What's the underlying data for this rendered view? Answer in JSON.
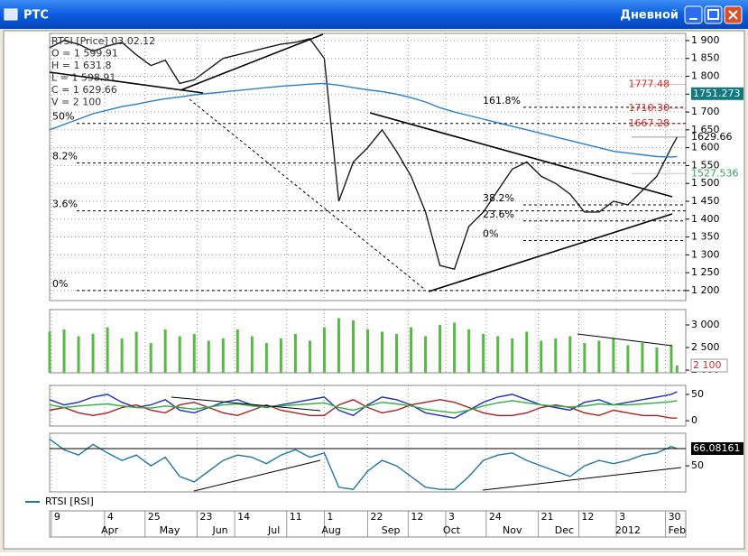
{
  "window": {
    "title": "РТС",
    "timeframe": "Дневной"
  },
  "chart_data": [
    {
      "type": "line",
      "info": [
        "RTSI [Price] 03.02.12",
        "O = 1 599.91",
        "H = 1 631.8",
        "L = 1 598.91",
        "C = 1 629.66",
        "V = 2 100"
      ],
      "x": [
        0,
        5,
        10,
        15,
        20,
        25,
        30,
        35,
        40,
        45,
        50,
        55,
        60,
        65,
        70,
        75,
        80,
        85,
        90,
        95,
        100,
        105,
        110,
        115,
        120,
        125,
        130,
        135,
        140,
        145,
        150,
        155,
        160,
        165,
        170,
        175,
        180,
        185,
        190,
        195,
        200,
        205,
        210,
        215,
        217
      ],
      "xlim": [
        0,
        220
      ],
      "xticks": [
        {
          "value": 0.6,
          "label": "9"
        },
        {
          "value": 19,
          "label": "4"
        },
        {
          "value": 33,
          "label": "25"
        },
        {
          "value": 51,
          "label": "23"
        },
        {
          "value": 64,
          "label": "14"
        },
        {
          "value": 82,
          "label": "11"
        },
        {
          "value": 95,
          "label": "1"
        },
        {
          "value": 110,
          "label": "22"
        },
        {
          "value": 124,
          "label": "12"
        },
        {
          "value": 137,
          "label": "3"
        },
        {
          "value": 151,
          "label": "24"
        },
        {
          "value": 169,
          "label": "21"
        },
        {
          "value": 183,
          "label": "12"
        },
        {
          "value": 196,
          "label": "3"
        },
        {
          "value": 213,
          "label": "30"
        }
      ],
      "xmonths": [
        {
          "value": 20.8,
          "label": "Apr"
        },
        {
          "value": 41.5,
          "label": "May"
        },
        {
          "value": 59,
          "label": "Jun"
        },
        {
          "value": 77.6,
          "label": "Jul"
        },
        {
          "value": 97.4,
          "label": "Aug"
        },
        {
          "value": 118,
          "label": "Sep"
        },
        {
          "value": 139,
          "label": "Oct"
        },
        {
          "value": 160,
          "label": "Nov"
        },
        {
          "value": 178,
          "label": "Dec"
        },
        {
          "value": 200,
          "label": "2012"
        },
        {
          "value": 217,
          "label": "Feb"
        }
      ],
      "ylim": [
        1172,
        1920
      ],
      "yticks": [
        {
          "value": 1200,
          "label": "1 200"
        },
        {
          "value": 1250,
          "label": "1 250"
        },
        {
          "value": 1300,
          "label": "1 300"
        },
        {
          "value": 1350,
          "label": "1 350"
        },
        {
          "value": 1400,
          "label": "1 400"
        },
        {
          "value": 1450,
          "label": "1 450"
        },
        {
          "value": 1500,
          "label": "1 500"
        },
        {
          "value": 1550,
          "label": "1 550"
        },
        {
          "value": 1600,
          "label": "1 600"
        },
        {
          "value": 1650,
          "label": "1 650"
        },
        {
          "value": 1700,
          "label": "1 700"
        },
        {
          "value": 1750,
          "label": "1 750"
        },
        {
          "value": 1800,
          "label": "1 800"
        },
        {
          "value": 1850,
          "label": "1 850"
        },
        {
          "value": 1900,
          "label": "1 900"
        }
      ],
      "grid": true,
      "series": [
        {
          "color": "#1a1a1a",
          "values": [
            1880,
            1900,
            1890,
            1870,
            1885,
            1895,
            1860,
            1830,
            1845,
            1780,
            1790,
            1820,
            1850,
            1860,
            1870,
            1880,
            1890,
            1895,
            1905,
            1850,
            1450,
            1560,
            1600,
            1650,
            1590,
            1520,
            1420,
            1270,
            1260,
            1380,
            1420,
            1480,
            1540,
            1560,
            1520,
            1500,
            1470,
            1420,
            1420,
            1450,
            1440,
            1480,
            1520,
            1600,
            1629.66
          ]
        },
        {
          "color": "#2a7fd0",
          "values": [
            1650,
            1665,
            1680,
            1695,
            1705,
            1715,
            1722,
            1730,
            1737,
            1742,
            1748,
            1752,
            1756,
            1760,
            1764,
            1768,
            1772,
            1775,
            1778,
            1780,
            1775,
            1768,
            1762,
            1757,
            1750,
            1740,
            1728,
            1712,
            1700,
            1690,
            1680,
            1670,
            1660,
            1650,
            1640,
            1630,
            1620,
            1610,
            1600,
            1590,
            1585,
            1580,
            1575,
            1574,
            1575
          ]
        }
      ],
      "fib": [
        {
          "value": 1713,
          "label": "161.8%",
          "anchor": "right"
        },
        {
          "value": 1668,
          "label": "50%",
          "anchor": "left"
        },
        {
          "value": 1557,
          "label": "8.2%",
          "anchor": "left"
        },
        {
          "value": 1423,
          "label": "3.6%",
          "anchor": "left"
        },
        {
          "value": 1200,
          "label": "0%",
          "anchor": "left"
        },
        {
          "value": 1440,
          "label": "38.2%",
          "anchor": "right"
        },
        {
          "value": 1395,
          "label": "23.6%",
          "anchor": "right"
        },
        {
          "value": 1340,
          "label": "0%",
          "anchor": "right"
        }
      ],
      "price_labels": [
        {
          "value": 1777.48,
          "color": "#d03030"
        },
        {
          "value": 1710.3,
          "label": "1710.30",
          "color": "#d03030"
        },
        {
          "value": 1667.28,
          "color": "#d03030"
        },
        {
          "value": 1751.273,
          "color": "#ffffff",
          "background": "#107a80"
        },
        {
          "value": 1629.66,
          "color": "#000000"
        },
        {
          "value": 1527.536,
          "color": "#3aa060"
        }
      ]
    },
    {
      "type": "bar",
      "ylim": [
        1940,
        3340
      ],
      "yticks": [
        {
          "value": 2000,
          "label": "2 000"
        },
        {
          "value": 2500,
          "label": "2 500"
        },
        {
          "value": 3000,
          "label": "3 000"
        }
      ],
      "color": "#58b848",
      "values": [
        2850,
        2900,
        2750,
        2800,
        2950,
        2700,
        2850,
        2600,
        2900,
        2750,
        2800,
        2650,
        2700,
        2900,
        2750,
        2600,
        2700,
        2800,
        2650,
        2950,
        3150,
        3100,
        2900,
        2850,
        2800,
        2950,
        2750,
        3000,
        3050,
        2900,
        2800,
        2750,
        2700,
        2850,
        2650,
        2700,
        2750,
        2600,
        2650,
        2700,
        2550,
        2600,
        2500,
        2550,
        2100
      ],
      "current": {
        "value": 2100,
        "label": "2 100",
        "color": "#d03030"
      }
    },
    {
      "type": "line",
      "ylim": [
        -10,
        67
      ],
      "yticks": [
        0,
        50
      ],
      "series": [
        {
          "color": "#2030c0",
          "values": [
            40,
            30,
            35,
            45,
            50,
            35,
            25,
            30,
            40,
            20,
            15,
            25,
            35,
            40,
            30,
            25,
            30,
            35,
            40,
            45,
            20,
            10,
            30,
            45,
            40,
            30,
            15,
            10,
            5,
            20,
            35,
            45,
            50,
            40,
            30,
            25,
            20,
            35,
            40,
            30,
            35,
            40,
            45,
            50,
            55
          ]
        },
        {
          "color": "#b02020",
          "values": [
            20,
            25,
            15,
            10,
            15,
            25,
            30,
            20,
            15,
            30,
            35,
            25,
            15,
            10,
            20,
            30,
            20,
            15,
            10,
            10,
            30,
            40,
            25,
            15,
            20,
            30,
            35,
            40,
            35,
            25,
            15,
            10,
            10,
            15,
            25,
            30,
            25,
            15,
            10,
            20,
            15,
            10,
            10,
            5,
            5
          ]
        },
        {
          "color": "#30b040",
          "values": [
            30,
            25,
            28,
            30,
            32,
            28,
            25,
            24,
            28,
            25,
            22,
            26,
            30,
            32,
            28,
            26,
            28,
            30,
            32,
            34,
            25,
            20,
            28,
            35,
            32,
            28,
            22,
            18,
            15,
            20,
            28,
            34,
            38,
            34,
            30,
            28,
            26,
            28,
            32,
            30,
            30,
            32,
            34,
            36,
            38
          ]
        }
      ]
    },
    {
      "type": "line",
      "ylim": [
        25.6,
        80.4
      ],
      "yticks": [
        50
      ],
      "series": [
        {
          "name": "RTSI [RSI]",
          "color": "#1f78a8",
          "values": [
            75,
            65,
            60,
            70,
            62,
            55,
            60,
            50,
            58,
            40,
            35,
            45,
            55,
            60,
            58,
            52,
            60,
            65,
            58,
            62,
            30,
            28,
            45,
            55,
            50,
            40,
            30,
            28,
            28,
            40,
            55,
            60,
            62,
            55,
            50,
            45,
            40,
            50,
            55,
            52,
            55,
            60,
            62,
            68,
            66.08161
          ]
        }
      ],
      "current": {
        "value": 66.08161,
        "color": "#ffffff",
        "background": "#000000"
      }
    }
  ]
}
